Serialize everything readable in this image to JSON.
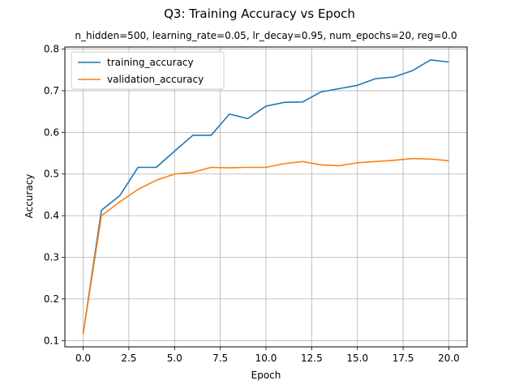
{
  "chart_data": {
    "type": "line",
    "title": "Q3: Training Accuracy vs Epoch",
    "subtitle": "n_hidden=500, learning_rate=0.05, lr_decay=0.95, num_epochs=20, reg=0.0",
    "xlabel": "Epoch",
    "ylabel": "Accuracy",
    "xlim": [
      -1,
      21
    ],
    "ylim": [
      0.085,
      0.805
    ],
    "xticks": [
      0.0,
      2.5,
      5.0,
      7.5,
      10.0,
      12.5,
      15.0,
      17.5,
      20.0
    ],
    "xtick_labels": [
      "0.0",
      "2.5",
      "5.0",
      "7.5",
      "10.0",
      "12.5",
      "15.0",
      "17.5",
      "20.0"
    ],
    "yticks": [
      0.1,
      0.2,
      0.3,
      0.4,
      0.5,
      0.6,
      0.7,
      0.8
    ],
    "ytick_labels": [
      "0.1",
      "0.2",
      "0.3",
      "0.4",
      "0.5",
      "0.6",
      "0.7",
      "0.8"
    ],
    "grid": true,
    "legend_position": "top-left",
    "x": [
      0,
      1,
      2,
      3,
      4,
      5,
      6,
      7,
      8,
      9,
      10,
      11,
      12,
      13,
      14,
      15,
      16,
      17,
      18,
      19,
      20
    ],
    "series": [
      {
        "name": "training_accuracy",
        "color": "#1f77b4",
        "values": [
          0.116,
          0.413,
          0.448,
          0.516,
          0.516,
          0.555,
          0.593,
          0.593,
          0.644,
          0.633,
          0.663,
          0.672,
          0.673,
          0.697,
          0.705,
          0.713,
          0.729,
          0.733,
          0.748,
          0.774,
          0.769
        ]
      },
      {
        "name": "validation_accuracy",
        "color": "#ff7f0e",
        "values": [
          0.116,
          0.4,
          0.433,
          0.463,
          0.485,
          0.5,
          0.504,
          0.516,
          0.515,
          0.516,
          0.516,
          0.525,
          0.53,
          0.522,
          0.52,
          0.527,
          0.53,
          0.533,
          0.537,
          0.536,
          0.532
        ]
      }
    ]
  }
}
